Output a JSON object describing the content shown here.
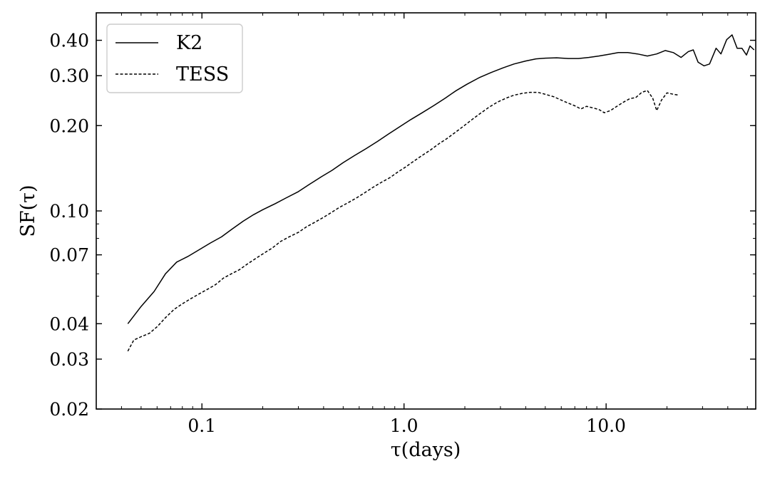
{
  "chart_data": {
    "type": "line",
    "title": "",
    "xlabel": "τ(days)",
    "ylabel": "SF(τ)",
    "xscale": "log",
    "yscale": "log",
    "xlim": [
      0.03,
      55
    ],
    "ylim": [
      0.02,
      0.5
    ],
    "x_ticks": [
      {
        "value": 0.1,
        "label": "0.1"
      },
      {
        "value": 1.0,
        "label": "1.0"
      },
      {
        "value": 10.0,
        "label": "10.0"
      }
    ],
    "y_ticks": [
      {
        "value": 0.02,
        "label": "0.02"
      },
      {
        "value": 0.03,
        "label": "0.03"
      },
      {
        "value": 0.04,
        "label": "0.04"
      },
      {
        "value": 0.07,
        "label": "0.07"
      },
      {
        "value": 0.1,
        "label": "0.10"
      },
      {
        "value": 0.2,
        "label": "0.20"
      },
      {
        "value": 0.3,
        "label": "0.30"
      },
      {
        "value": 0.4,
        "label": "0.40"
      }
    ],
    "grid": false,
    "legend_position": "top-left",
    "series": [
      {
        "name": "K2",
        "style": "solid",
        "color": "#000000",
        "points": [
          [
            0.043,
            0.04
          ],
          [
            0.05,
            0.046
          ],
          [
            0.058,
            0.052
          ],
          [
            0.066,
            0.06
          ],
          [
            0.075,
            0.066
          ],
          [
            0.085,
            0.069
          ],
          [
            0.097,
            0.073
          ],
          [
            0.11,
            0.077
          ],
          [
            0.125,
            0.081
          ],
          [
            0.14,
            0.086
          ],
          [
            0.16,
            0.092
          ],
          [
            0.18,
            0.097
          ],
          [
            0.2,
            0.101
          ],
          [
            0.23,
            0.106
          ],
          [
            0.26,
            0.111
          ],
          [
            0.3,
            0.117
          ],
          [
            0.34,
            0.124
          ],
          [
            0.39,
            0.132
          ],
          [
            0.44,
            0.139
          ],
          [
            0.5,
            0.148
          ],
          [
            0.57,
            0.157
          ],
          [
            0.65,
            0.166
          ],
          [
            0.74,
            0.176
          ],
          [
            0.84,
            0.187
          ],
          [
            0.95,
            0.198
          ],
          [
            1.08,
            0.21
          ],
          [
            1.23,
            0.222
          ],
          [
            1.4,
            0.235
          ],
          [
            1.6,
            0.25
          ],
          [
            1.8,
            0.265
          ],
          [
            2.05,
            0.28
          ],
          [
            2.35,
            0.295
          ],
          [
            2.7,
            0.308
          ],
          [
            3.1,
            0.32
          ],
          [
            3.5,
            0.33
          ],
          [
            4.0,
            0.338
          ],
          [
            4.5,
            0.344
          ],
          [
            5.0,
            0.346
          ],
          [
            5.7,
            0.347
          ],
          [
            6.5,
            0.345
          ],
          [
            7.3,
            0.345
          ],
          [
            8.2,
            0.348
          ],
          [
            9.2,
            0.352
          ],
          [
            10.3,
            0.357
          ],
          [
            11.5,
            0.362
          ],
          [
            12.8,
            0.362
          ],
          [
            14.3,
            0.358
          ],
          [
            16.0,
            0.352
          ],
          [
            17.8,
            0.358
          ],
          [
            19.6,
            0.368
          ],
          [
            21.5,
            0.362
          ],
          [
            23.5,
            0.348
          ],
          [
            25.5,
            0.365
          ],
          [
            27.0,
            0.37
          ],
          [
            28.5,
            0.335
          ],
          [
            30.5,
            0.325
          ],
          [
            32.5,
            0.33
          ],
          [
            35.0,
            0.375
          ],
          [
            37.0,
            0.358
          ],
          [
            39.5,
            0.402
          ],
          [
            42.0,
            0.418
          ],
          [
            44.5,
            0.375
          ],
          [
            47.0,
            0.375
          ],
          [
            49.5,
            0.355
          ],
          [
            51.5,
            0.382
          ],
          [
            54.0,
            0.37
          ]
        ]
      },
      {
        "name": "TESS",
        "style": "dashed",
        "color": "#000000",
        "points": [
          [
            0.043,
            0.032
          ],
          [
            0.046,
            0.035
          ],
          [
            0.05,
            0.036
          ],
          [
            0.055,
            0.037
          ],
          [
            0.06,
            0.039
          ],
          [
            0.066,
            0.042
          ],
          [
            0.073,
            0.045
          ],
          [
            0.08,
            0.047
          ],
          [
            0.088,
            0.049
          ],
          [
            0.097,
            0.051
          ],
          [
            0.107,
            0.053
          ],
          [
            0.117,
            0.055
          ],
          [
            0.128,
            0.058
          ],
          [
            0.14,
            0.06
          ],
          [
            0.153,
            0.062
          ],
          [
            0.168,
            0.065
          ],
          [
            0.185,
            0.068
          ],
          [
            0.203,
            0.071
          ],
          [
            0.223,
            0.074
          ],
          [
            0.245,
            0.078
          ],
          [
            0.27,
            0.081
          ],
          [
            0.3,
            0.084
          ],
          [
            0.33,
            0.088
          ],
          [
            0.36,
            0.091
          ],
          [
            0.4,
            0.095
          ],
          [
            0.44,
            0.099
          ],
          [
            0.48,
            0.103
          ],
          [
            0.53,
            0.107
          ],
          [
            0.58,
            0.111
          ],
          [
            0.64,
            0.116
          ],
          [
            0.7,
            0.121
          ],
          [
            0.77,
            0.126
          ],
          [
            0.85,
            0.131
          ],
          [
            0.93,
            0.137
          ],
          [
            1.02,
            0.143
          ],
          [
            1.12,
            0.15
          ],
          [
            1.23,
            0.157
          ],
          [
            1.35,
            0.164
          ],
          [
            1.48,
            0.172
          ],
          [
            1.63,
            0.18
          ],
          [
            1.79,
            0.189
          ],
          [
            1.97,
            0.199
          ],
          [
            2.17,
            0.21
          ],
          [
            2.39,
            0.221
          ],
          [
            2.63,
            0.232
          ],
          [
            2.9,
            0.242
          ],
          [
            3.2,
            0.25
          ],
          [
            3.5,
            0.256
          ],
          [
            3.85,
            0.26
          ],
          [
            4.2,
            0.262
          ],
          [
            4.6,
            0.262
          ],
          [
            5.0,
            0.258
          ],
          [
            5.5,
            0.253
          ],
          [
            6.0,
            0.246
          ],
          [
            6.5,
            0.24
          ],
          [
            7.0,
            0.235
          ],
          [
            7.5,
            0.229
          ],
          [
            8.0,
            0.234
          ],
          [
            8.6,
            0.231
          ],
          [
            9.2,
            0.228
          ],
          [
            9.8,
            0.222
          ],
          [
            10.5,
            0.226
          ],
          [
            11.3,
            0.234
          ],
          [
            12.2,
            0.242
          ],
          [
            13.1,
            0.249
          ],
          [
            14.0,
            0.251
          ],
          [
            15.0,
            0.262
          ],
          [
            16.0,
            0.266
          ],
          [
            17.0,
            0.25
          ],
          [
            17.8,
            0.226
          ],
          [
            18.8,
            0.246
          ],
          [
            20.0,
            0.261
          ],
          [
            21.5,
            0.258
          ],
          [
            23.0,
            0.256
          ]
        ]
      }
    ]
  }
}
